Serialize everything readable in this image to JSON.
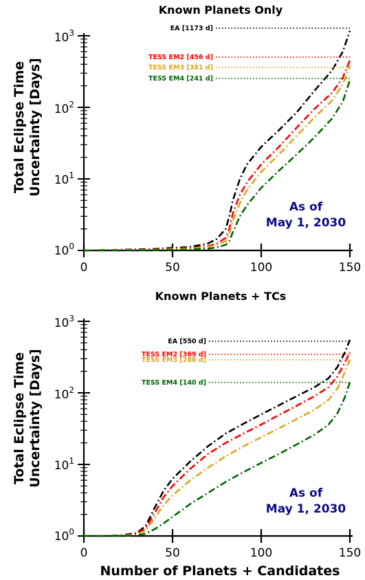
{
  "chart_data": [
    {
      "type": "line",
      "title": "Known Planets Only",
      "ylabel_line1": "Total Eclipse Time",
      "ylabel_line2": "Uncertainty [Days]",
      "xlabel": "",
      "xlim": [
        0,
        150
      ],
      "ylim": [
        1,
        1000
      ],
      "yscale": "log",
      "x_ticks": [
        "0",
        "50",
        "100",
        "150"
      ],
      "y_ticks": [
        {
          "base": "10",
          "exp": "0"
        },
        {
          "base": "10",
          "exp": "1"
        },
        {
          "base": "10",
          "exp": "2"
        },
        {
          "base": "10",
          "exp": "3"
        }
      ],
      "annotation": {
        "line1": "As of",
        "line2": "May 1, 2030",
        "color": "#0a0a82"
      },
      "series": [
        {
          "name": "EA [1173 d]",
          "color": "#000000",
          "final": 1173,
          "x": [
            0,
            20,
            40,
            60,
            70,
            75,
            80,
            82,
            84,
            88,
            92,
            100,
            110,
            120,
            130,
            140,
            146,
            150
          ],
          "y": [
            1.0,
            1.02,
            1.05,
            1.12,
            1.25,
            1.45,
            2.0,
            3.0,
            5.0,
            10,
            16,
            28,
            48,
            85,
            170,
            330,
            600,
            1173
          ]
        },
        {
          "name": "TESS EM2 [456 d]",
          "color": "#ff0000",
          "final": 456,
          "x": [
            0,
            20,
            40,
            60,
            70,
            75,
            80,
            82,
            84,
            88,
            92,
            100,
            110,
            120,
            130,
            140,
            146,
            150
          ],
          "y": [
            1.0,
            1.01,
            1.03,
            1.08,
            1.15,
            1.25,
            1.5,
            2.0,
            3.3,
            6.0,
            9.0,
            16,
            28,
            52,
            95,
            160,
            260,
            456
          ]
        },
        {
          "name": "TESS EM3 [381 d]",
          "color": "#daa520",
          "final": 381,
          "x": [
            0,
            20,
            40,
            60,
            70,
            75,
            80,
            82,
            84,
            88,
            92,
            100,
            110,
            120,
            130,
            140,
            146,
            150
          ],
          "y": [
            1.0,
            1.01,
            1.02,
            1.06,
            1.12,
            1.2,
            1.35,
            1.7,
            2.6,
            4.6,
            7.0,
            12.5,
            22,
            40,
            72,
            125,
            210,
            381
          ]
        },
        {
          "name": "TESS EM4 [241 d]",
          "color": "#006400",
          "final": 241,
          "x": [
            0,
            20,
            40,
            60,
            70,
            75,
            80,
            82,
            84,
            88,
            92,
            100,
            110,
            120,
            130,
            140,
            146,
            150
          ],
          "y": [
            1.0,
            1.0,
            1.01,
            1.03,
            1.06,
            1.1,
            1.2,
            1.35,
            1.8,
            3.0,
            4.3,
            7.5,
            13,
            22,
            38,
            70,
            120,
            241
          ]
        }
      ]
    },
    {
      "type": "line",
      "title": "Known Planets + TCs",
      "ylabel_line1": "Total Eclipse Time",
      "ylabel_line2": "Uncertainty [Days]",
      "xlabel": "Number of Planets + Candidates",
      "xlim": [
        0,
        150
      ],
      "ylim": [
        1,
        1000
      ],
      "yscale": "log",
      "x_ticks": [
        "0",
        "50",
        "100",
        "150"
      ],
      "y_ticks": [
        {
          "base": "10",
          "exp": "0"
        },
        {
          "base": "10",
          "exp": "1"
        },
        {
          "base": "10",
          "exp": "2"
        },
        {
          "base": "10",
          "exp": "3"
        }
      ],
      "annotation": {
        "line1": "As of",
        "line2": "May 1, 2030",
        "color": "#0a0a82"
      },
      "series": [
        {
          "name": "EA [550 d]",
          "color": "#000000",
          "final": 550,
          "x": [
            0,
            10,
            20,
            30,
            35,
            40,
            45,
            50,
            60,
            70,
            80,
            90,
            100,
            110,
            120,
            130,
            138,
            143,
            147,
            150
          ],
          "y": [
            1.0,
            1.0,
            1.02,
            1.1,
            1.4,
            2.5,
            4.3,
            6.3,
            11,
            18,
            27,
            37,
            50,
            67,
            90,
            120,
            160,
            230,
            360,
            550
          ]
        },
        {
          "name": "TESS EM2 [369 d]",
          "color": "#ff0000",
          "final": 369,
          "x": [
            0,
            10,
            20,
            30,
            35,
            40,
            45,
            50,
            60,
            70,
            80,
            90,
            100,
            110,
            120,
            130,
            138,
            143,
            147,
            150
          ],
          "y": [
            1.0,
            1.0,
            1.01,
            1.07,
            1.3,
            2.1,
            3.5,
            5.0,
            8.7,
            14,
            20,
            27,
            36,
            49,
            66,
            90,
            120,
            170,
            260,
            369
          ]
        },
        {
          "name": "TESS EM3 [288 d]",
          "color": "#daa520",
          "final": 288,
          "x": [
            0,
            10,
            20,
            30,
            35,
            40,
            45,
            50,
            60,
            70,
            80,
            90,
            100,
            110,
            120,
            130,
            138,
            143,
            147,
            150
          ],
          "y": [
            1.0,
            1.0,
            1.01,
            1.05,
            1.2,
            1.8,
            2.7,
            3.7,
            6.0,
            9.0,
            13,
            18,
            24,
            32,
            43,
            58,
            80,
            115,
            190,
            288
          ]
        },
        {
          "name": "TESS EM4 [140 d]",
          "color": "#006400",
          "final": 140,
          "x": [
            0,
            10,
            20,
            30,
            35,
            40,
            45,
            50,
            60,
            70,
            80,
            90,
            100,
            110,
            120,
            130,
            138,
            143,
            147,
            150
          ],
          "y": [
            1.0,
            1.0,
            1.0,
            1.02,
            1.08,
            1.25,
            1.5,
            1.85,
            2.8,
            4.0,
            5.7,
            7.8,
            10.5,
            14,
            19,
            26,
            36,
            52,
            85,
            140
          ]
        }
      ]
    }
  ]
}
